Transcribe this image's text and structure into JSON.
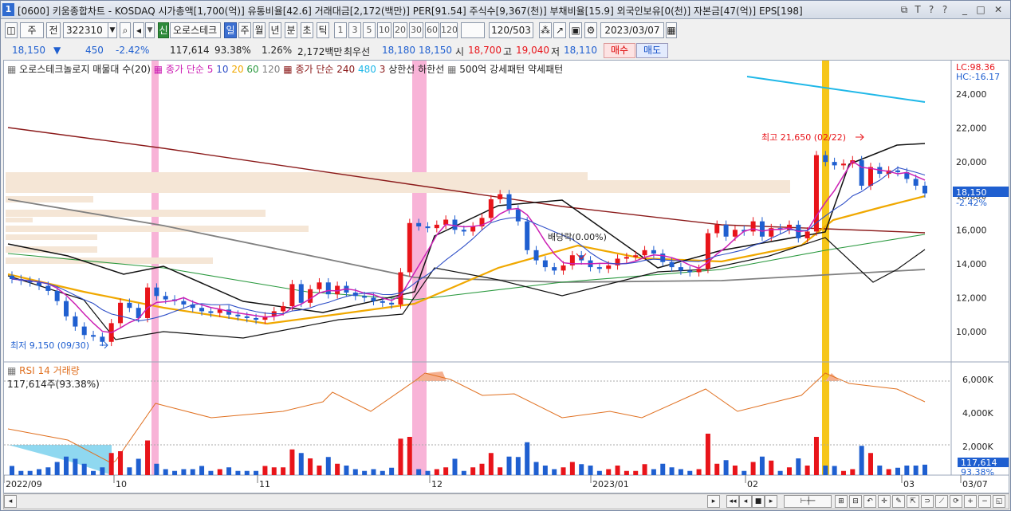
{
  "window": {
    "number": "1",
    "title": "[0600] 키움종합차트 - KOSDAQ 시가총액[1,700(억)] 유통비율[42.6] 거래대금[2,172(백만)] PER[91.54] 주식수[9,367(천)] 부채비율[15.9] 외국인보유[0(천)] 자본금[47(억)] EPS[198]",
    "controls": [
      "⧉",
      "T",
      "?",
      "?",
      "_",
      "□",
      "✕"
    ]
  },
  "toolbar": {
    "period_select": "주",
    "prev_label": "전",
    "code": "322310",
    "name": "오로스테크",
    "tabs": [
      "일",
      "주",
      "월",
      "년",
      "분",
      "초",
      "틱"
    ],
    "minutes": [
      "1",
      "3",
      "5",
      "10",
      "20",
      "30",
      "60",
      "120"
    ],
    "count": "120/503",
    "date": "2023/03/07"
  },
  "quote": {
    "price": "18,150",
    "arrow": "▼",
    "change": "450",
    "change_pct": "-2.42%",
    "volume": "117,614",
    "vol_ratio": "93.38%",
    "turnover_pct": "1.26%",
    "amount": "2,172백만",
    "best_label": "최우선",
    "ask": "18,180",
    "bid": "18,150",
    "open_label": "시",
    "open": "18,700",
    "high_label": "고",
    "high": "19,040",
    "low_label": "저",
    "low": "18,110",
    "buy_label": "매수",
    "sell_label": "매도"
  },
  "legend": {
    "main": "오로스테크놀로지 매물대 수(20)",
    "ma_label": "종가 단순",
    "ma": [
      "5",
      "10",
      "20",
      "60",
      "120"
    ],
    "ma2_label": "종가 단순",
    "ma2": [
      "240",
      "480",
      "3"
    ],
    "band_upper": "상한선",
    "band_lower": "하한선",
    "pattern": "500억 강세패턴",
    "pattern2": "약세패턴",
    "rsi": "RSI 14",
    "vol": "거래량",
    "vol_info": "117,614주(93.38%)"
  },
  "annotations": {
    "high": "최고 21,650 (02/22)",
    "low": "최저 9,150 (09/30)",
    "dividend": "배당락(0.00%)",
    "lc": "LC:98.36",
    "hc": "HC:-16.17",
    "price_tag": "18,150",
    "pct_tag": "-2.42%",
    "vol_tag": "117,614",
    "vol_pct_tag": "93.38%"
  },
  "colors": {
    "up": "#e8141a",
    "down": "#1f5fd0",
    "ma5": "#cc1fb4",
    "ma10": "#3050c8",
    "ma20": "#f0a800",
    "ma60": "#2c9a40",
    "ma120": "#808080",
    "ma240": "#8b1a1a",
    "ma480": "#20b8e8"
  },
  "chart_data": {
    "type": "candlestick",
    "price_axis": [
      "24,000",
      "22,000",
      "20,000",
      "18,000",
      "16,000",
      "14,000",
      "12,000",
      "10,000"
    ],
    "volume_axis": [
      "6,000K",
      "4,000K",
      "2,000K"
    ],
    "x_labels": [
      "2022/09",
      "10",
      "11",
      "12",
      "2023/01",
      "02",
      "03",
      "03/07"
    ],
    "candles_close": [
      13100,
      13000,
      12900,
      12700,
      12400,
      11800,
      10900,
      10300,
      9800,
      9700,
      9400,
      10500,
      11700,
      11400,
      10800,
      12600,
      12100,
      11900,
      11800,
      11600,
      11400,
      11200,
      11100,
      11300,
      11000,
      10900,
      10800,
      10700,
      10900,
      11200,
      11500,
      12800,
      11700,
      12500,
      12900,
      12200,
      12700,
      12300,
      12100,
      12000,
      11800,
      11700,
      11600,
      13500,
      16400,
      16200,
      16100,
      16300,
      16600,
      16000,
      15900,
      16200,
      16700,
      17800,
      18100,
      17200,
      16500,
      14800,
      14200,
      13800,
      13600,
      13900,
      14500,
      14200,
      13800,
      13700,
      13900,
      14300,
      14400,
      14500,
      14800,
      14600,
      14100,
      13800,
      13600,
      13500,
      13700,
      15800,
      16300,
      15600,
      16000,
      15900,
      16500,
      15600,
      16100,
      16000,
      16300,
      15500,
      15900,
      20400,
      20000,
      19800,
      19900,
      20100,
      18600,
      19700,
      19300,
      19500,
      19400,
      19000,
      18600,
      18150
    ]
  }
}
